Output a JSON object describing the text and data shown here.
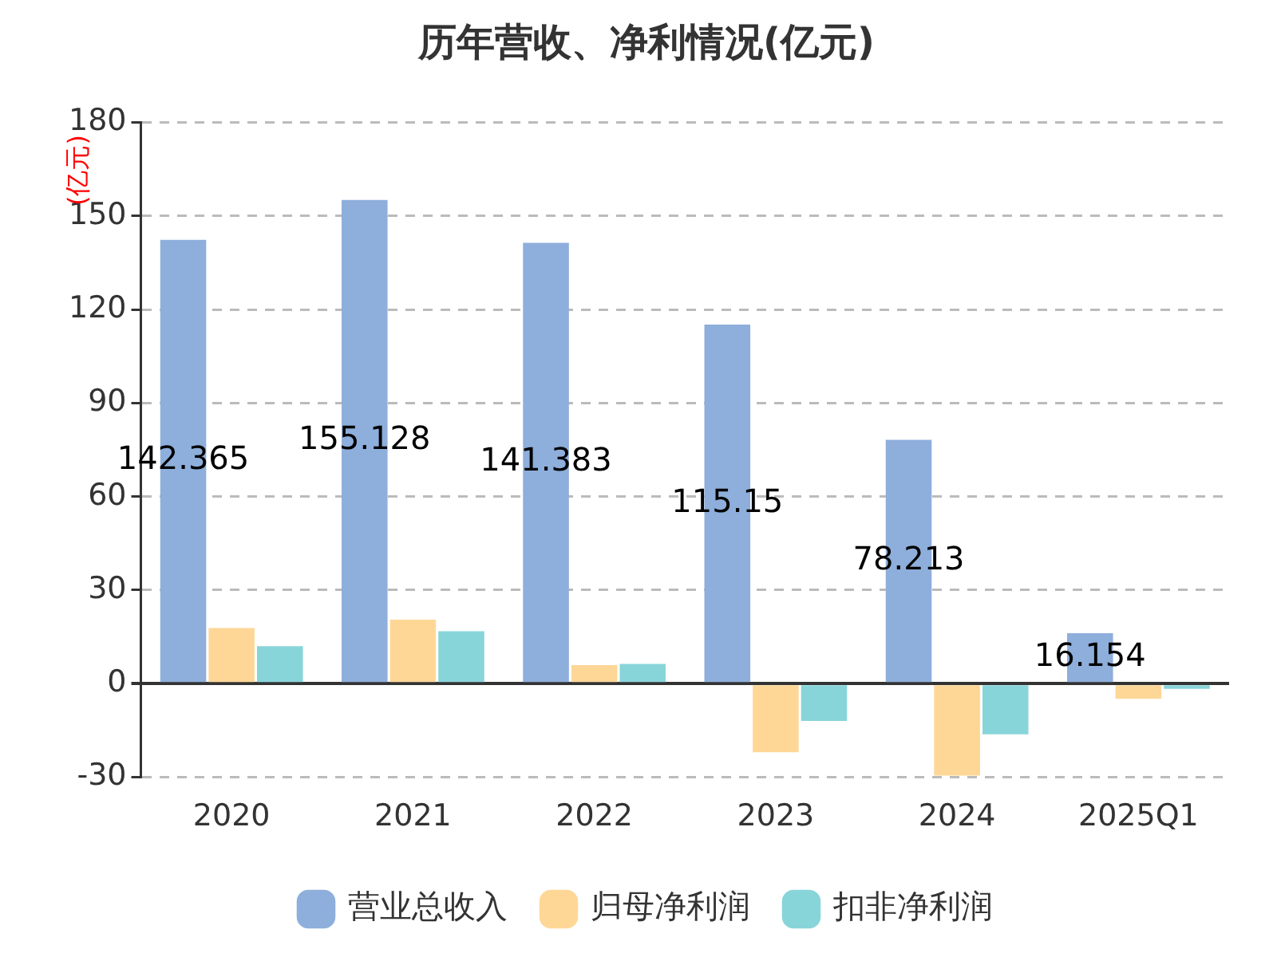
{
  "chart_data": {
    "type": "bar",
    "title": "历年营收、净利情况(亿元)",
    "ylabel": "(亿元)",
    "categories": [
      "2020",
      "2021",
      "2022",
      "2023",
      "2024",
      "2025Q1"
    ],
    "series": [
      {
        "name": "营业总收入",
        "color": "#8eaedb",
        "values": [
          142.365,
          155.128,
          141.383,
          115.15,
          78.213,
          16.154
        ],
        "value_labels": [
          "142.365",
          "155.128",
          "141.383",
          "115.15",
          "78.213",
          "16.154"
        ]
      },
      {
        "name": "归母净利润",
        "color": "#fed797",
        "values": [
          17.8,
          20.5,
          5.9,
          -22.0,
          -29.5,
          -4.9
        ]
      },
      {
        "name": "扣非净利润",
        "color": "#88d5d9",
        "values": [
          12.0,
          16.8,
          6.3,
          -12.0,
          -16.3,
          -1.7
        ]
      }
    ],
    "ylim": [
      -30,
      180
    ],
    "yticks": [
      -30,
      0,
      30,
      60,
      90,
      120,
      150,
      180
    ],
    "grid": "y",
    "legend": "bottom"
  }
}
